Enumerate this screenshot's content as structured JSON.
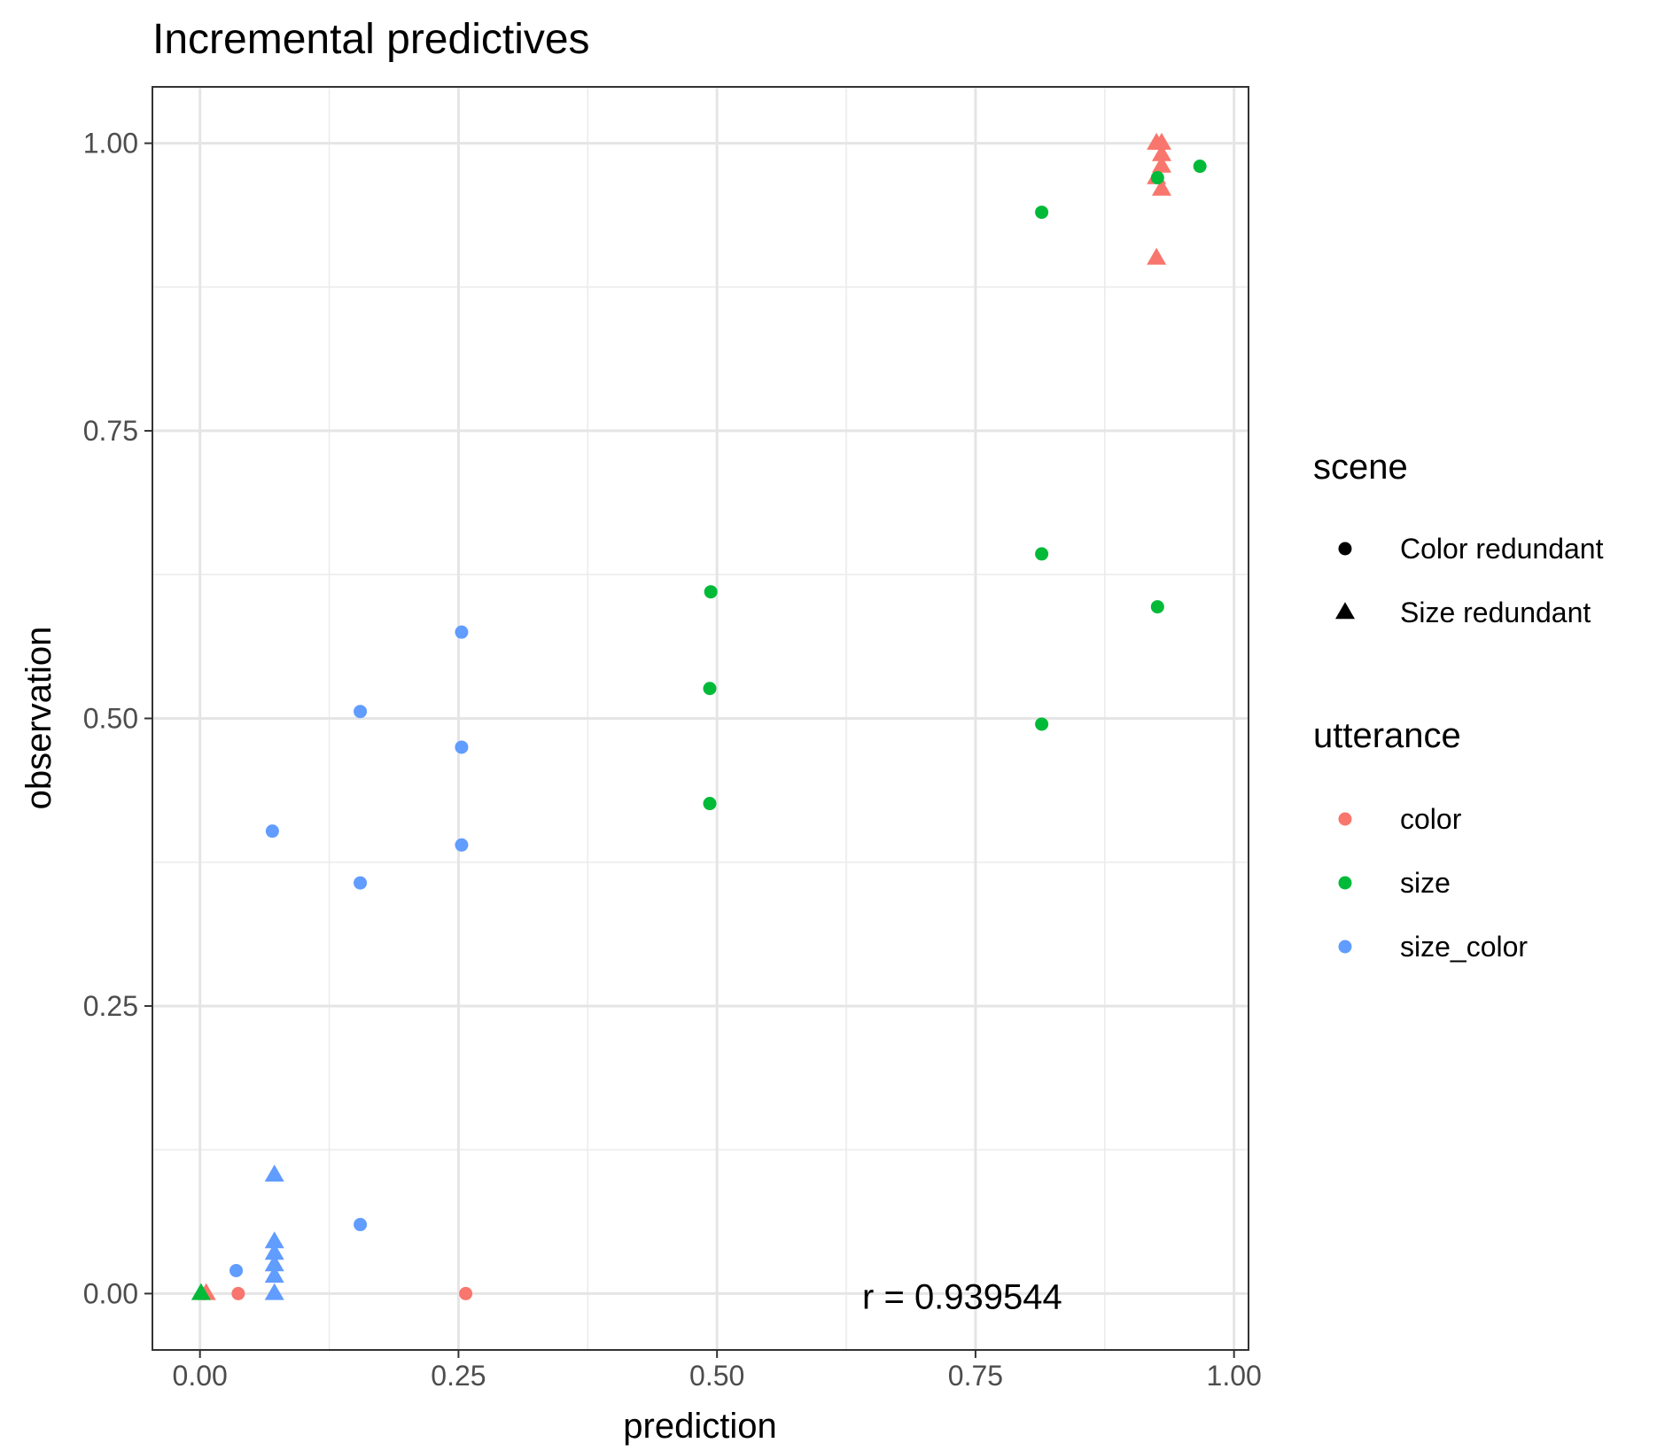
{
  "chart_data": {
    "type": "scatter",
    "title": "Incremental predictives",
    "xlabel": "prediction",
    "ylabel": "observation",
    "xlim": [
      -0.046,
      1.014
    ],
    "ylim": [
      -0.049,
      1.049
    ],
    "xticks": [
      {
        "value": 0,
        "label": "0.00"
      },
      {
        "value": 0.25,
        "label": "0.25"
      },
      {
        "value": 0.5,
        "label": "0.50"
      },
      {
        "value": 0.75,
        "label": "0.75"
      },
      {
        "value": 1,
        "label": "1.00"
      }
    ],
    "yticks": [
      {
        "value": 0,
        "label": "0.00"
      },
      {
        "value": 0.25,
        "label": "0.25"
      },
      {
        "value": 0.5,
        "label": "0.50"
      },
      {
        "value": 0.75,
        "label": "0.75"
      },
      {
        "value": 1,
        "label": "1.00"
      }
    ],
    "grid": true,
    "annotation": {
      "text": "r = 0.939544",
      "x": 0.75,
      "y": 0
    },
    "legend_placement": "right",
    "legends": [
      {
        "title": "scene",
        "entries": [
          {
            "label": "Color redundant",
            "shape": "circle"
          },
          {
            "label": "Size redundant",
            "shape": "triangle"
          }
        ]
      },
      {
        "title": "utterance",
        "entries": [
          {
            "label": "color",
            "color": "#F8766D"
          },
          {
            "label": "size",
            "color": "#00BA38"
          },
          {
            "label": "size_color",
            "color": "#619CFF"
          }
        ]
      }
    ],
    "series": [
      {
        "utterance": "color",
        "scene": "Color redundant",
        "color": "#F8766D",
        "shape": "circle",
        "points": [
          [
            0.004,
            0.0
          ],
          [
            0.037,
            0.0
          ],
          [
            0.257,
            0.0
          ]
        ]
      },
      {
        "utterance": "color",
        "scene": "Size redundant",
        "color": "#F8766D",
        "shape": "triangle",
        "points": [
          [
            0.006,
            0.0
          ],
          [
            0.925,
            1.0
          ],
          [
            0.93,
            1.0
          ],
          [
            0.93,
            0.99
          ],
          [
            0.93,
            0.98
          ],
          [
            0.925,
            0.97
          ],
          [
            0.93,
            0.96
          ],
          [
            0.925,
            0.9
          ]
        ]
      },
      {
        "utterance": "size",
        "scene": "Color redundant",
        "color": "#00BA38",
        "shape": "circle",
        "points": [
          [
            0.967,
            0.98
          ],
          [
            0.926,
            0.97
          ],
          [
            0.814,
            0.94
          ],
          [
            0.814,
            0.643
          ],
          [
            0.926,
            0.597
          ],
          [
            0.814,
            0.495
          ],
          [
            0.494,
            0.61
          ],
          [
            0.493,
            0.526
          ],
          [
            0.493,
            0.426
          ]
        ]
      },
      {
        "utterance": "size",
        "scene": "Size redundant",
        "color": "#00BA38",
        "shape": "triangle",
        "points": [
          [
            0.001,
            0.0
          ]
        ]
      },
      {
        "utterance": "size_color",
        "scene": "Color redundant",
        "color": "#619CFF",
        "shape": "circle",
        "points": [
          [
            0.253,
            0.575
          ],
          [
            0.155,
            0.506
          ],
          [
            0.253,
            0.475
          ],
          [
            0.07,
            0.402
          ],
          [
            0.253,
            0.39
          ],
          [
            0.155,
            0.357
          ],
          [
            0.155,
            0.06
          ],
          [
            0.035,
            0.02
          ]
        ]
      },
      {
        "utterance": "size_color",
        "scene": "Size redundant",
        "color": "#619CFF",
        "shape": "triangle",
        "points": [
          [
            0.072,
            0.103
          ],
          [
            0.072,
            0.045
          ],
          [
            0.072,
            0.035
          ],
          [
            0.072,
            0.025
          ],
          [
            0.072,
            0.015
          ],
          [
            0.072,
            0.0
          ]
        ]
      }
    ]
  }
}
